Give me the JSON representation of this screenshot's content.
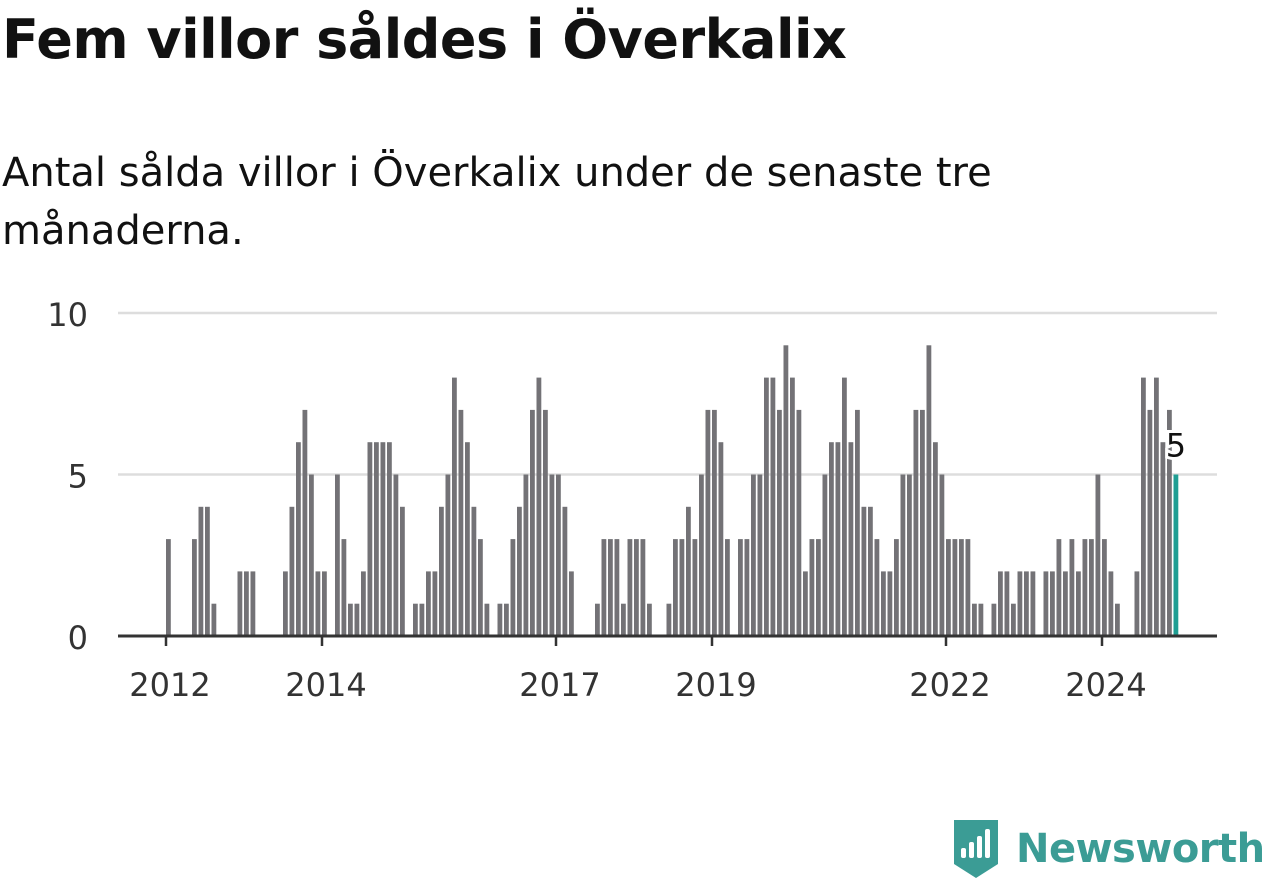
{
  "header": {
    "title": "Fem villor såldes i Överkalix",
    "subtitle": "Antal sålda villor i Överkalix under de senaste tre månaderna."
  },
  "brand": {
    "name": "Newsworthy",
    "color": "#3b9c95",
    "icon": "newsworthy-logo-icon"
  },
  "chart_data": {
    "type": "bar",
    "yticks": [
      0,
      5,
      10
    ],
    "ylim": [
      0,
      10
    ],
    "grid": true,
    "xtick_labels": [
      {
        "label": "2012",
        "index": 0
      },
      {
        "label": "2014",
        "index": 24
      },
      {
        "label": "2017",
        "index": 60
      },
      {
        "label": "2019",
        "index": 84
      },
      {
        "label": "2022",
        "index": 120
      },
      {
        "label": "2024",
        "index": 144
      }
    ],
    "colors": {
      "bar": "#737276",
      "highlight": "#1f9e93",
      "grid": "#dddddd",
      "axis": "#333333"
    },
    "values": [
      3,
      0,
      0,
      0,
      3,
      4,
      4,
      1,
      0,
      0,
      0,
      2,
      2,
      2,
      0,
      0,
      0,
      0,
      2,
      4,
      6,
      7,
      5,
      2,
      2,
      0,
      5,
      3,
      1,
      1,
      2,
      6,
      6,
      6,
      6,
      5,
      4,
      0,
      1,
      1,
      2,
      2,
      4,
      5,
      8,
      7,
      6,
      4,
      3,
      1,
      0,
      1,
      1,
      3,
      4,
      5,
      7,
      8,
      7,
      5,
      5,
      4,
      2,
      0,
      0,
      0,
      1,
      3,
      3,
      3,
      1,
      3,
      3,
      3,
      1,
      0,
      0,
      1,
      3,
      3,
      4,
      3,
      5,
      7,
      7,
      6,
      3,
      0,
      3,
      3,
      5,
      5,
      8,
      8,
      7,
      9,
      8,
      7,
      2,
      3,
      3,
      5,
      6,
      6,
      8,
      6,
      7,
      4,
      4,
      3,
      2,
      2,
      3,
      5,
      5,
      7,
      7,
      9,
      6,
      5,
      3,
      3,
      3,
      3,
      1,
      1,
      0,
      1,
      2,
      2,
      1,
      2,
      2,
      2,
      0,
      2,
      2,
      3,
      2,
      3,
      2,
      3,
      3,
      5,
      3,
      2,
      1,
      0,
      0,
      2,
      8,
      7,
      8,
      6,
      7,
      5
    ],
    "highlight_index": 155,
    "highlight_label": "5"
  }
}
